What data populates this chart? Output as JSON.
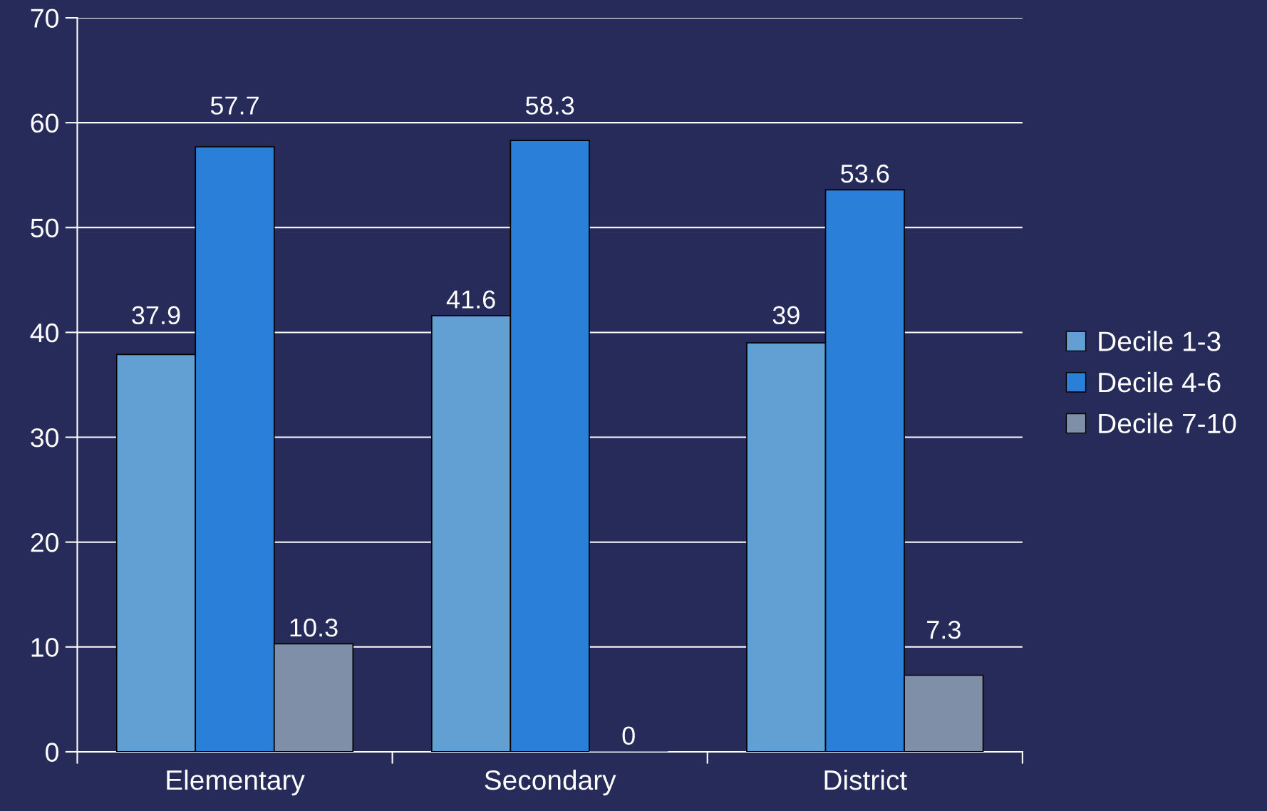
{
  "chart_data": {
    "type": "bar",
    "categories": [
      "Elementary",
      "Secondary",
      "District"
    ],
    "series": [
      {
        "name": "Decile 1-3",
        "color": "#629fd3",
        "values": [
          37.9,
          41.6,
          39
        ]
      },
      {
        "name": "Decile 4-6",
        "color": "#2a7fd8",
        "values": [
          57.7,
          58.3,
          53.6
        ]
      },
      {
        "name": "Decile 7-10",
        "color": "#7f8fa8",
        "values": [
          10.3,
          0,
          7.3
        ]
      }
    ],
    "ylim": [
      0,
      70
    ],
    "yticks": [
      0,
      10,
      20,
      30,
      40,
      50,
      60,
      70
    ],
    "grid": "y",
    "legend": "right",
    "data_labels": true
  }
}
